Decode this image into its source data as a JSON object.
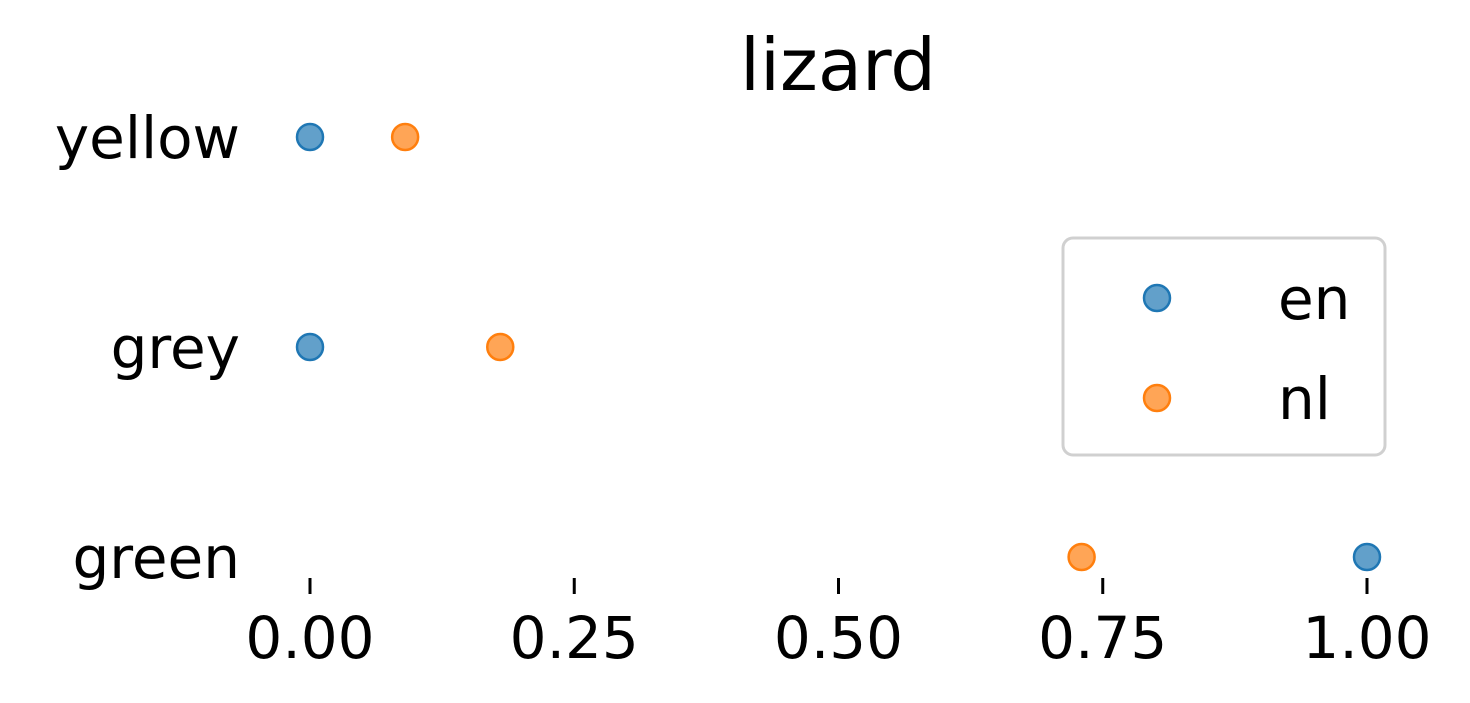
{
  "chart_data": {
    "type": "scatter",
    "title": "lizard",
    "categories": [
      "yellow",
      "grey",
      "green"
    ],
    "xlim": [
      0,
      1
    ],
    "xticks": [
      "0.00",
      "0.25",
      "0.50",
      "0.75",
      "1.00"
    ],
    "xtick_values": [
      0,
      0.25,
      0.5,
      0.75,
      1.0
    ],
    "grid": false,
    "legend_position": "right",
    "series": [
      {
        "name": "en",
        "color": "#1f77b4",
        "values": [
          0.0,
          0.0,
          1.0
        ]
      },
      {
        "name": "nl",
        "color": "#ff7f0e",
        "values": [
          0.09,
          0.18,
          0.73
        ]
      }
    ]
  }
}
